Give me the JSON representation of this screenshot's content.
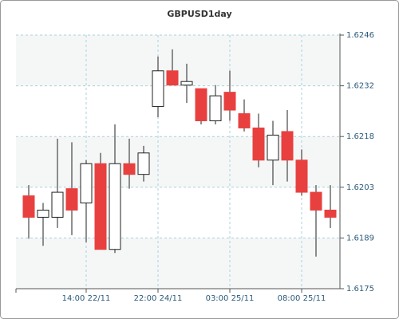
{
  "chart_data": {
    "type": "candlestick",
    "title": "GBPUSD1day",
    "categories": [
      null,
      null,
      null,
      null,
      "14:00 22/11",
      null,
      null,
      null,
      null,
      "22:00 24/11",
      null,
      null,
      null,
      null,
      "03:00 25/11",
      null,
      null,
      null,
      null,
      "08:00 25/11",
      null,
      null
    ],
    "open": [
      1.6201,
      1.6195,
      1.6195,
      1.6203,
      1.6199,
      1.621,
      1.6186,
      1.621,
      1.6207,
      1.6226,
      1.6236,
      1.6232,
      1.6231,
      1.6222,
      1.623,
      1.6224,
      1.622,
      1.6211,
      1.6219,
      1.6211,
      1.6202,
      1.6197
    ],
    "high": [
      1.6204,
      1.6199,
      1.6217,
      1.6216,
      1.6211,
      1.6213,
      1.6221,
      1.6217,
      1.6215,
      1.624,
      1.6242,
      1.6238,
      1.6231,
      1.6232,
      1.6236,
      1.6228,
      1.6224,
      1.6222,
      1.6225,
      1.6214,
      1.6204,
      1.6204
    ],
    "low": [
      1.6189,
      1.6187,
      1.6192,
      1.619,
      1.6188,
      1.6186,
      1.6185,
      1.6203,
      1.6205,
      1.6223,
      1.6232,
      1.6227,
      1.6221,
      1.6221,
      1.6222,
      1.6219,
      1.6209,
      1.6204,
      1.6205,
      1.6201,
      1.6184,
      1.6192
    ],
    "close": [
      1.6195,
      1.6197,
      1.6202,
      1.6197,
      1.621,
      1.6186,
      1.621,
      1.6207,
      1.6213,
      1.6236,
      1.6232,
      1.6233,
      1.6222,
      1.6229,
      1.6225,
      1.622,
      1.6211,
      1.6218,
      1.6211,
      1.6202,
      1.6197,
      1.6195
    ],
    "up_color": "#ffffff",
    "down_color": "#e8403f",
    "ylim": [
      1.6175,
      1.6246
    ],
    "yticks": [
      1.6175,
      {
        "value": 1.61892,
        "label": "1.6189"
      },
      {
        "value": 1.62034,
        "label": "1.6203"
      },
      {
        "value": 1.62176,
        "label": "1.6218"
      },
      {
        "value": 1.62318,
        "label": "1.6232"
      },
      1.6246
    ],
    "grid": true
  }
}
